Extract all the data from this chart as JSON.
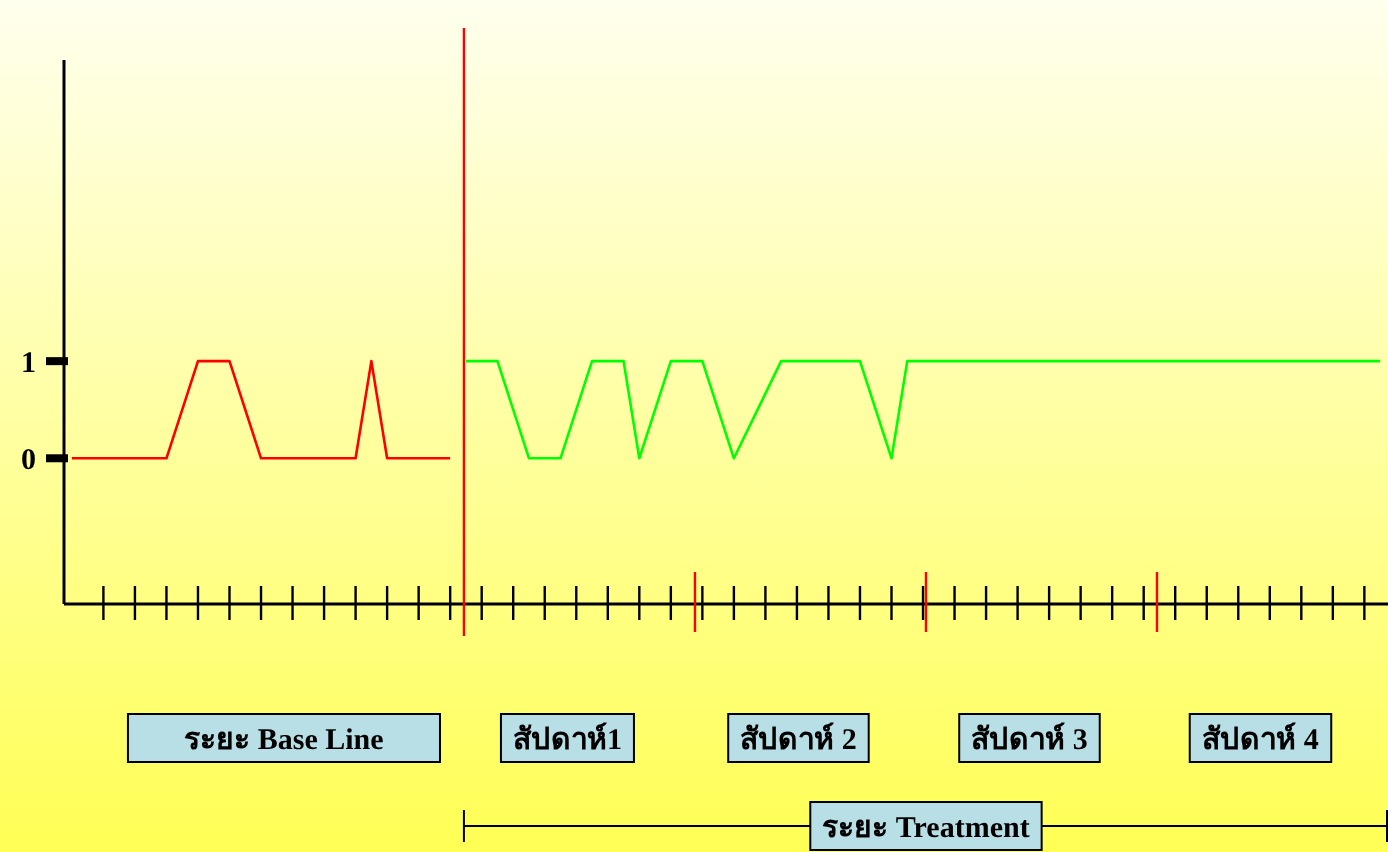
{
  "chart_data": {
    "type": "line",
    "categories": [
      null,
      null,
      null,
      null,
      null,
      null,
      null,
      null,
      null,
      null,
      null,
      null,
      null,
      null,
      null,
      null,
      null,
      null,
      null,
      null,
      null,
      null,
      null,
      null,
      null,
      null,
      null,
      null,
      null,
      null,
      null,
      null,
      null,
      null,
      null,
      null,
      null,
      null,
      null,
      null,
      null,
      null,
      null,
      null,
      null,
      null,
      null,
      null,
      null,
      null,
      null,
      null,
      null,
      null,
      null,
      null,
      null,
      null,
      null,
      null,
      null,
      null,
      null,
      null,
      null,
      null,
      null,
      null,
      null,
      null,
      null,
      null,
      null,
      null,
      null,
      null,
      null,
      null,
      null,
      null,
      null,
      null,
      null,
      null
    ],
    "series": [
      {
        "color": "#ff0000",
        "values": [
          0,
          null,
          null,
          null,
          null,
          null,
          0,
          null,
          1,
          null,
          1,
          null,
          0,
          null,
          null,
          null,
          null,
          null,
          0,
          1,
          0,
          null,
          null,
          null,
          0,
          null,
          null,
          null,
          null,
          null,
          null,
          null,
          null,
          null,
          null,
          null,
          null,
          null,
          null,
          null,
          null,
          null,
          null,
          null,
          null,
          null,
          null,
          null,
          null,
          null,
          null,
          null,
          null,
          null,
          null,
          null,
          null,
          null,
          null,
          null,
          null,
          null,
          null,
          null,
          null,
          null,
          null,
          null,
          null,
          null,
          null,
          null,
          null,
          null,
          null,
          null,
          null,
          null,
          null,
          null,
          null,
          null,
          null,
          null
        ]
      },
      {
        "color": "#00ff00",
        "values": [
          null,
          null,
          null,
          null,
          null,
          null,
          null,
          null,
          null,
          null,
          null,
          null,
          null,
          null,
          null,
          null,
          null,
          null,
          null,
          null,
          null,
          null,
          null,
          null,
          null,
          1,
          null,
          1,
          null,
          0,
          null,
          0,
          null,
          1,
          null,
          1,
          0,
          null,
          1,
          null,
          1,
          null,
          0,
          null,
          null,
          1,
          null,
          null,
          null,
          null,
          1,
          null,
          0,
          1,
          null,
          null,
          null,
          null,
          null,
          null,
          null,
          null,
          null,
          null,
          null,
          null,
          null,
          null,
          null,
          null,
          null,
          null,
          null,
          null,
          null,
          null,
          null,
          null,
          null,
          null,
          null,
          null,
          null,
          1
        ]
      }
    ],
    "ylim": [
      -1.5,
      4.1
    ],
    "yticks": [
      0,
      1
    ],
    "tick_labels": "y",
    "annotations": [
      "ระยะ Base Line",
      "สัปดาห์1",
      "สัปดาห์ 2",
      "สัปดาห์ 3",
      "สัปดาห์ 4",
      "ระยะ Treatment"
    ]
  }
}
